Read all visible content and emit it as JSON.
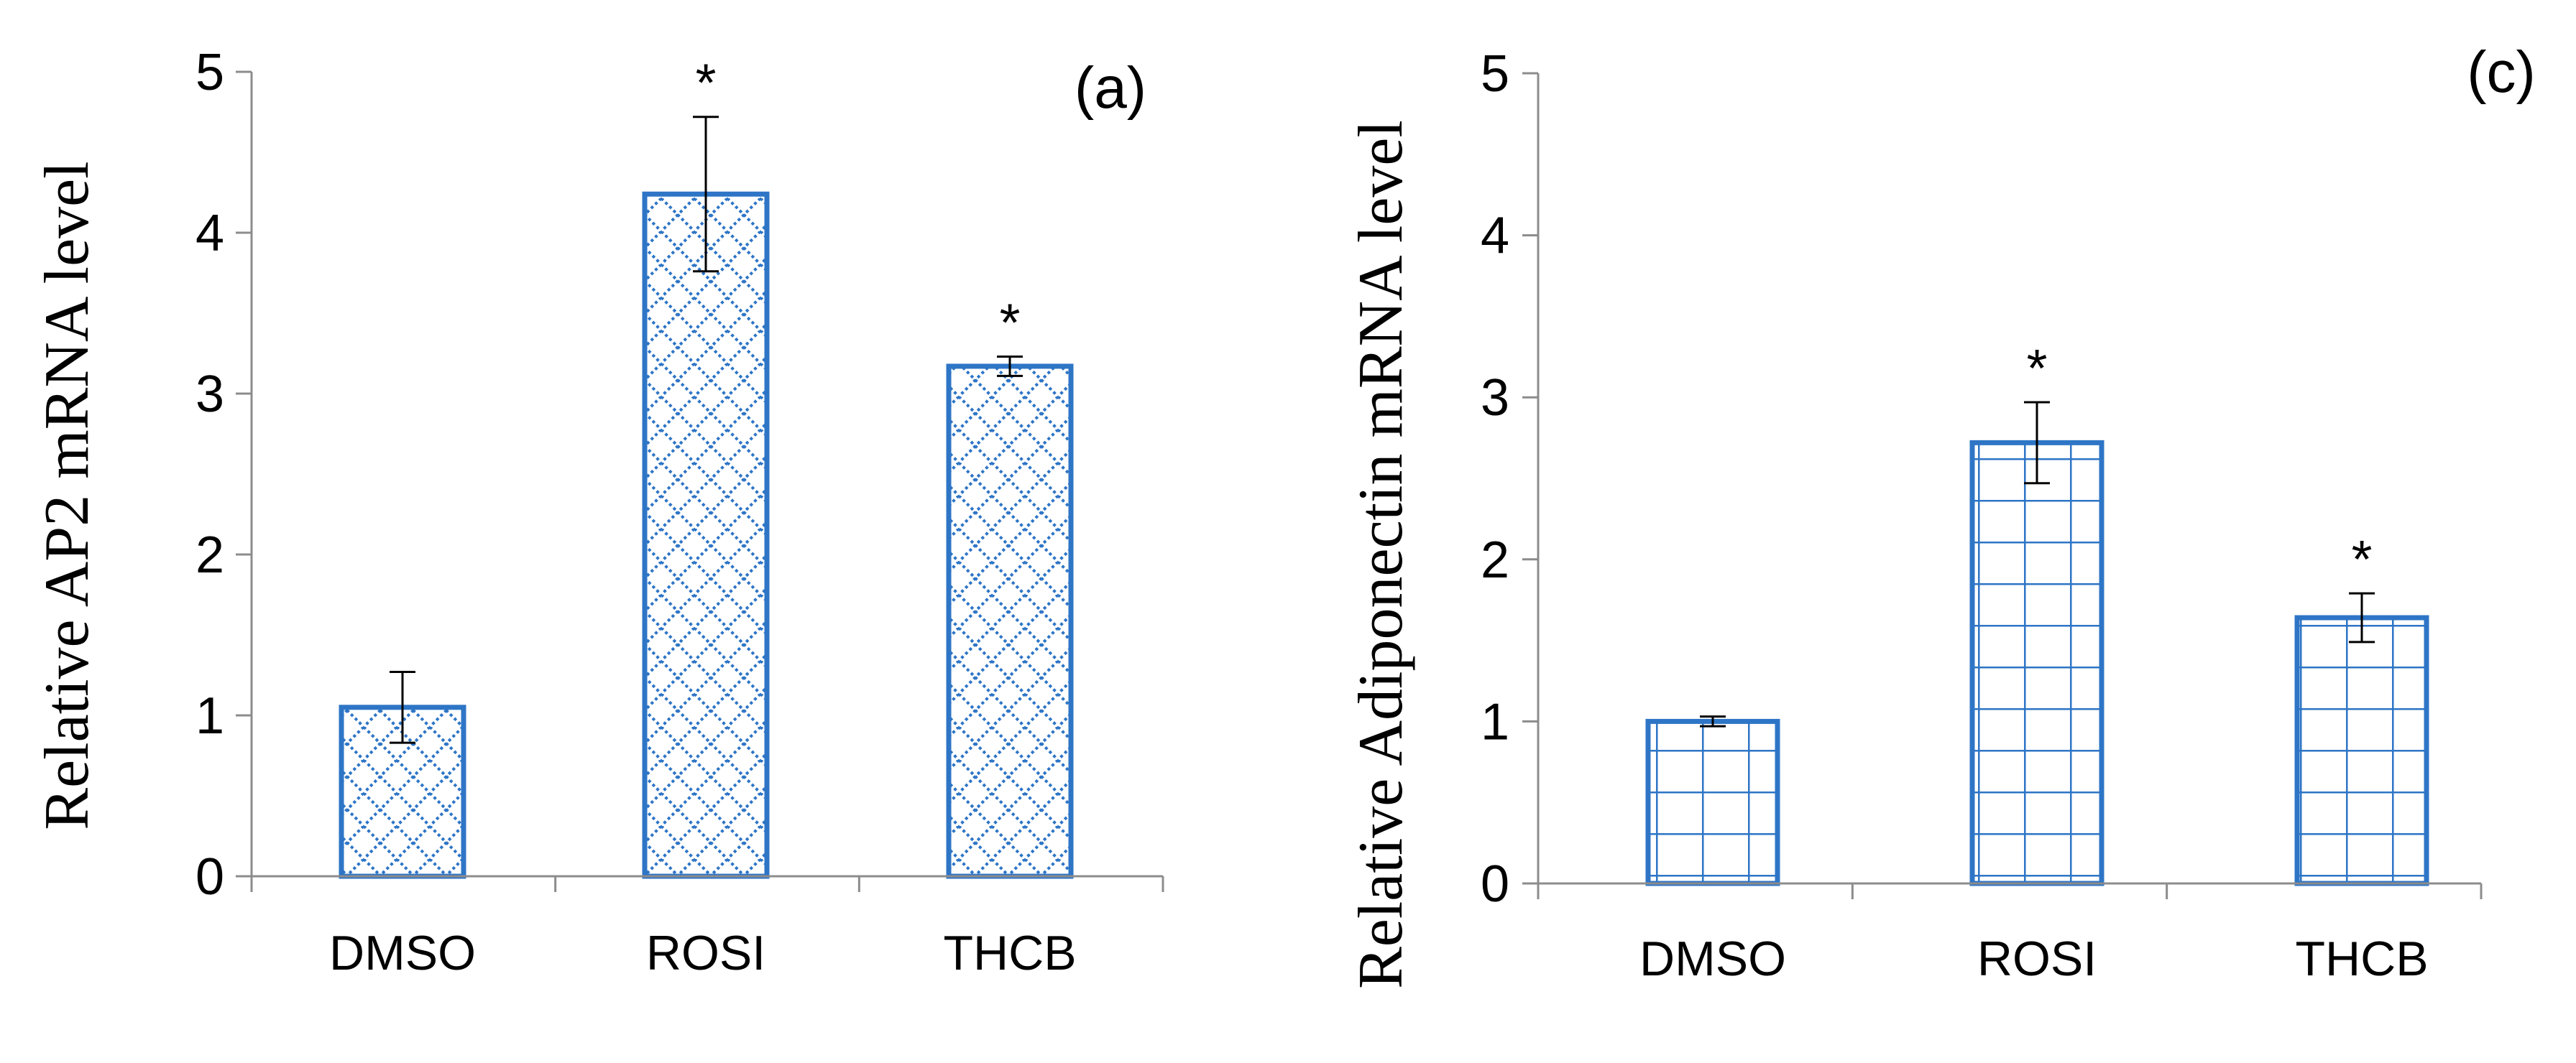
{
  "chart_data": [
    {
      "type": "bar",
      "panel_label": "(a)",
      "title": "",
      "xlabel": "",
      "ylabel": "Relative AP2 mRNA level",
      "categories": [
        "DMSO",
        "ROSI",
        "THCB"
      ],
      "values": [
        1.05,
        4.24,
        3.17
      ],
      "errors": [
        0.22,
        0.48,
        0.06
      ],
      "significance": [
        "",
        "*",
        "*"
      ],
      "ylim": [
        0,
        5
      ],
      "yticks": [
        0,
        1,
        2,
        3,
        4,
        5
      ],
      "pattern": "diamond-crosshatch",
      "grid": false,
      "legend": "none"
    },
    {
      "type": "bar",
      "panel_label": "(c)",
      "title": "",
      "xlabel": "",
      "ylabel": "Relative Adiponectin mRNA level",
      "categories": [
        "DMSO",
        "ROSI",
        "THCB"
      ],
      "values": [
        1.0,
        2.72,
        1.64
      ],
      "errors": [
        0.03,
        0.25,
        0.15
      ],
      "significance": [
        "",
        "*",
        "*"
      ],
      "ylim": [
        0,
        5
      ],
      "yticks": [
        0,
        1,
        2,
        3,
        4,
        5
      ],
      "pattern": "grid",
      "grid": false,
      "legend": "none"
    }
  ],
  "colors": {
    "bar_stroke": "#2e75c6",
    "axis": "#8c8c8c",
    "text": "#000000",
    "error_bar": "#000000"
  }
}
